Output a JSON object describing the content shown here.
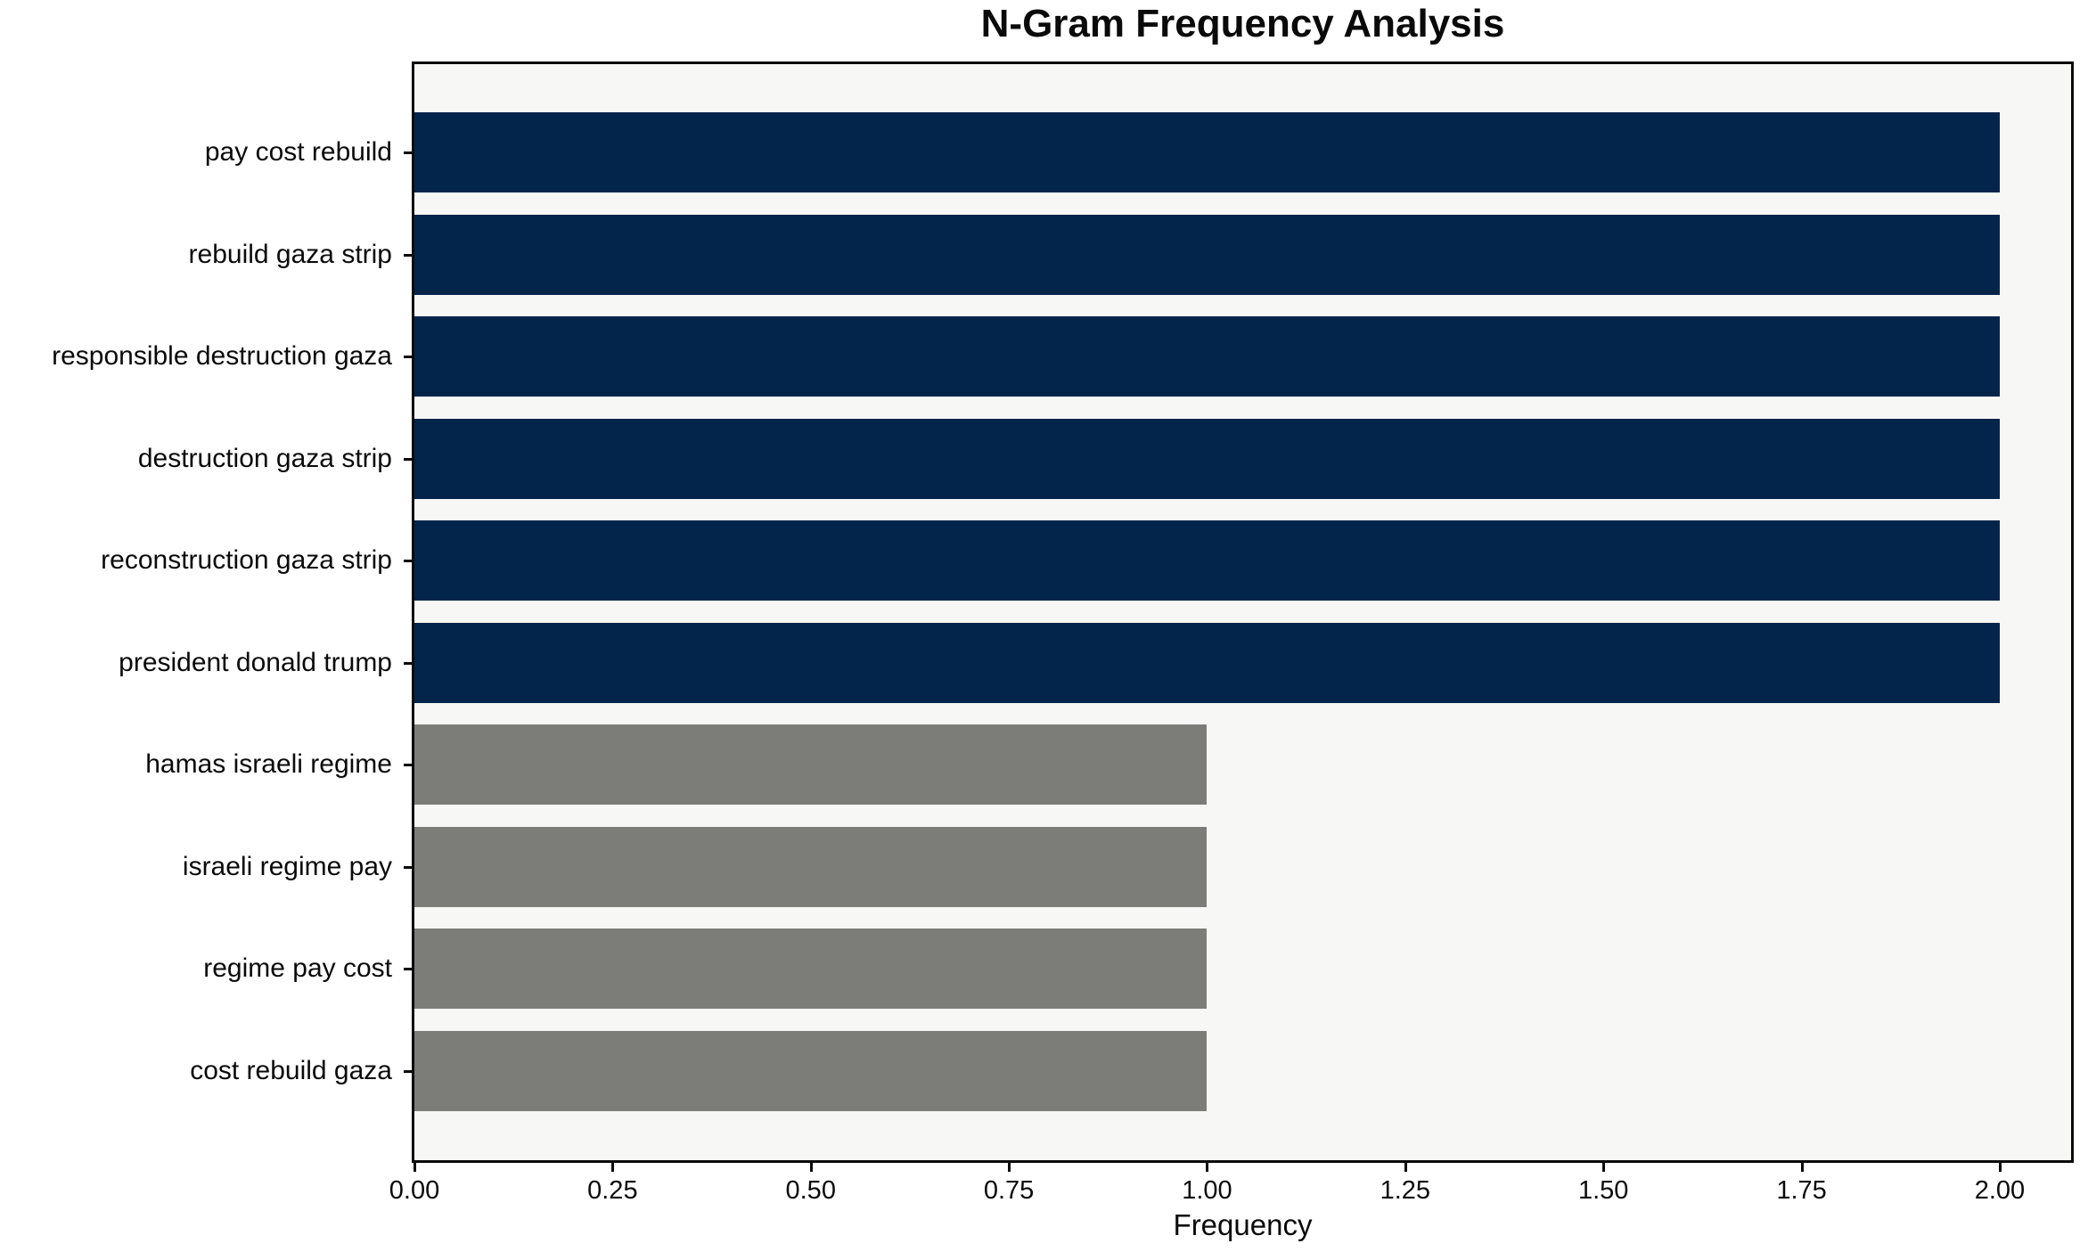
{
  "chart_data": {
    "type": "bar",
    "orientation": "horizontal",
    "title": "N-Gram Frequency Analysis",
    "xlabel": "Frequency",
    "ylabel": "",
    "categories": [
      "pay cost rebuild",
      "rebuild gaza strip",
      "responsible destruction gaza",
      "destruction gaza strip",
      "reconstruction gaza strip",
      "president donald trump",
      "hamas israeli regime",
      "israeli regime pay",
      "regime pay cost",
      "cost rebuild gaza"
    ],
    "values": [
      2,
      2,
      2,
      2,
      2,
      2,
      1,
      1,
      1,
      1
    ],
    "bar_colors": [
      "#03254c",
      "#03254c",
      "#03254c",
      "#03254c",
      "#03254c",
      "#03254c",
      "#7c7c79",
      "#7c7c79",
      "#7c7c79",
      "#7c7c79"
    ],
    "xlim": [
      0,
      2.09
    ],
    "xticks": {
      "values": [
        0,
        0.25,
        0.5,
        0.75,
        1.0,
        1.25,
        1.5,
        1.75,
        2.0
      ],
      "labels": [
        "0.00",
        "0.25",
        "0.50",
        "0.75",
        "1.00",
        "1.25",
        "1.50",
        "1.75",
        "2.00"
      ]
    },
    "grid": false,
    "legend": null,
    "plot_background": "#f7f7f5",
    "figure_background": "#ffffff"
  }
}
